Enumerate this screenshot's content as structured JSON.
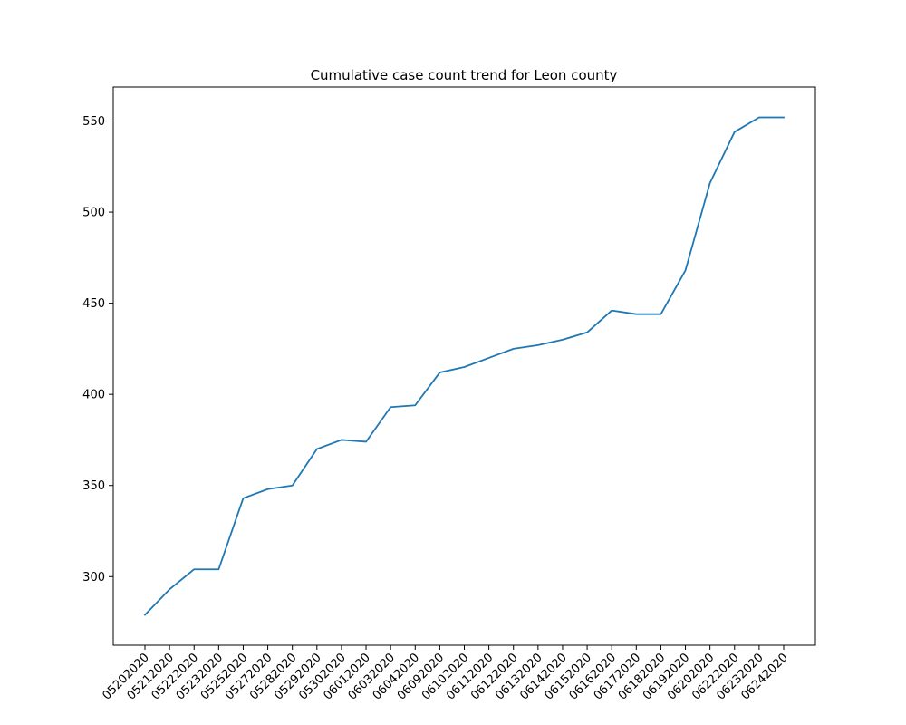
{
  "chart_data": {
    "type": "line",
    "title": "Cumulative case count trend for Leon county",
    "xlabel": "",
    "ylabel": "",
    "categories": [
      "05202020",
      "05212020",
      "05222020",
      "05232020",
      "05252020",
      "05272020",
      "05282020",
      "05292020",
      "05302020",
      "06012020",
      "06032020",
      "06042020",
      "06092020",
      "06102020",
      "06112020",
      "06122020",
      "06132020",
      "06142020",
      "06152020",
      "06162020",
      "06172020",
      "06182020",
      "06192020",
      "06202020",
      "06222020",
      "06232020",
      "06242020"
    ],
    "series": [
      {
        "values": [
          279,
          293,
          304,
          304,
          343,
          348,
          350,
          370,
          375,
          374,
          393,
          394,
          412,
          415,
          420,
          425,
          427,
          430,
          434,
          446,
          444,
          444,
          468,
          516,
          544,
          552,
          552
        ],
        "color": "#1f77b4"
      }
    ],
    "ylim": [
      262.35,
      568.65
    ],
    "yticks": [
      300,
      350,
      400,
      450,
      500,
      550
    ],
    "grid": false,
    "legend": "none"
  }
}
